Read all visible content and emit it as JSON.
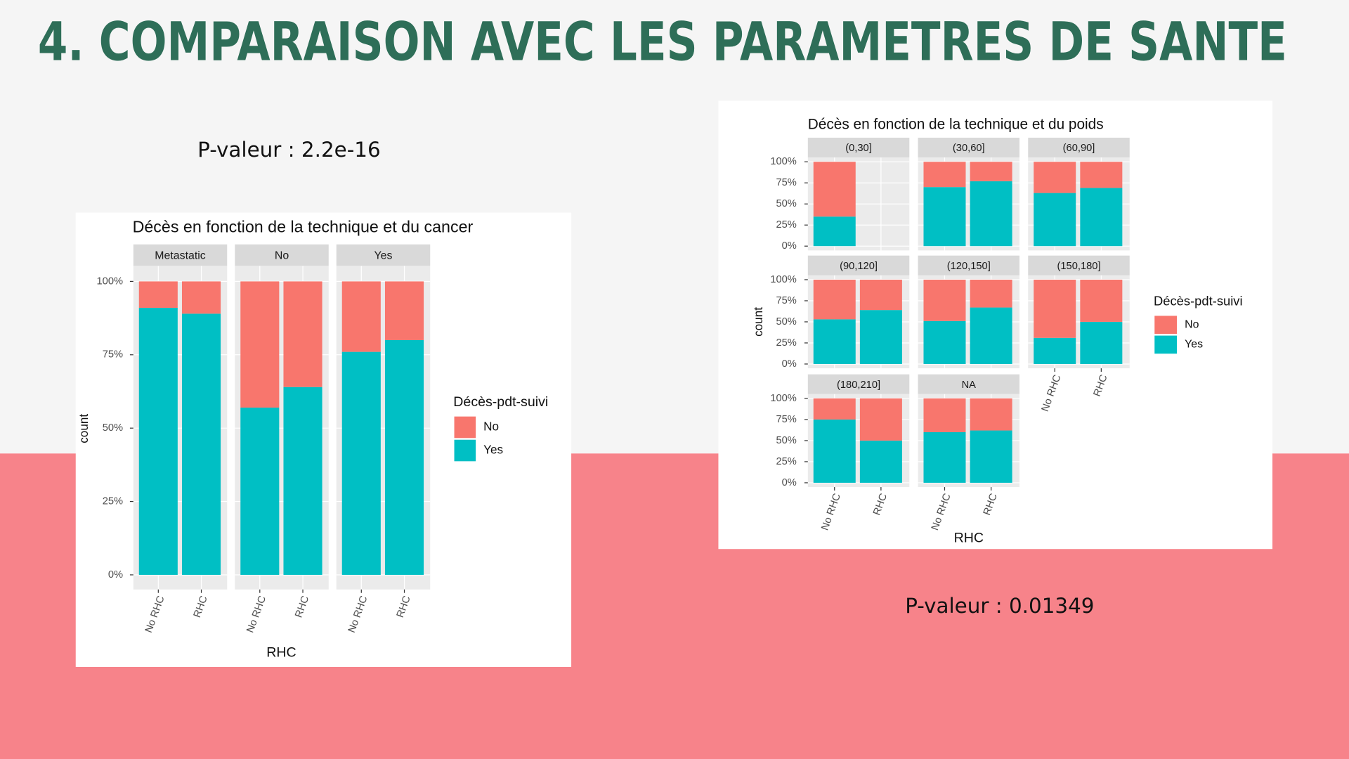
{
  "slide_title": "4. COMPARAISON AVEC LES PARAMETRES DE SANTE",
  "p_value_left": "P-valeur : 2.2e-16",
  "p_value_right": "P-valeur : 0.01349",
  "chart_data": [
    {
      "type": "bar",
      "stacked": true,
      "title": "Décès en fonction de la technique et du cancer",
      "x_label": "RHC",
      "y_label": "count",
      "legend_title": "Décès-pdt-suivi",
      "facets": [
        "Metastatic",
        "No",
        "Yes"
      ],
      "categories": [
        "No RHC",
        "RHC"
      ],
      "series": [
        {
          "name": "No",
          "color": "#f8766d",
          "values": [
            [
              9,
              11
            ],
            [
              43,
              36
            ],
            [
              24,
              20
            ]
          ]
        },
        {
          "name": "Yes",
          "color": "#00bfc4",
          "values": [
            [
              91,
              89
            ],
            [
              57,
              64
            ],
            [
              76,
              80
            ]
          ]
        }
      ],
      "ylim": [
        0,
        100
      ],
      "yticks": [
        {
          "value": 0,
          "label": "0%"
        },
        {
          "value": 25,
          "label": "25%"
        },
        {
          "value": 50,
          "label": "50%"
        },
        {
          "value": 75,
          "label": "75%"
        },
        {
          "value": 100,
          "label": "100%"
        }
      ],
      "grid": true
    },
    {
      "type": "bar",
      "stacked": true,
      "title": "Décès en fonction de la technique et du poids",
      "x_label": "RHC",
      "y_label": "count",
      "legend_title": "Décès-pdt-suivi",
      "facets": [
        "(0,30]",
        "(30,60]",
        "(60,90]",
        "(90,120]",
        "(120,150]",
        "(150,180]",
        "(180,210]",
        "NA"
      ],
      "categories": [
        "No RHC",
        "RHC"
      ],
      "series": [
        {
          "name": "No",
          "color": "#f8766d",
          "values": [
            [
              65,
              null
            ],
            [
              30,
              23
            ],
            [
              37,
              31
            ],
            [
              47,
              36
            ],
            [
              49,
              33
            ],
            [
              69,
              50
            ],
            [
              25,
              50
            ],
            [
              40,
              38
            ]
          ]
        },
        {
          "name": "Yes",
          "color": "#00bfc4",
          "values": [
            [
              35,
              null
            ],
            [
              70,
              77
            ],
            [
              63,
              69
            ],
            [
              53,
              64
            ],
            [
              51,
              67
            ],
            [
              31,
              50
            ],
            [
              75,
              50
            ],
            [
              60,
              62
            ]
          ]
        }
      ],
      "ylim": [
        0,
        100
      ],
      "yticks": [
        {
          "value": 0,
          "label": "0%"
        },
        {
          "value": 25,
          "label": "25%"
        },
        {
          "value": 50,
          "label": "50%"
        },
        {
          "value": 75,
          "label": "75%"
        },
        {
          "value": 100,
          "label": "100%"
        }
      ],
      "grid": true
    }
  ]
}
